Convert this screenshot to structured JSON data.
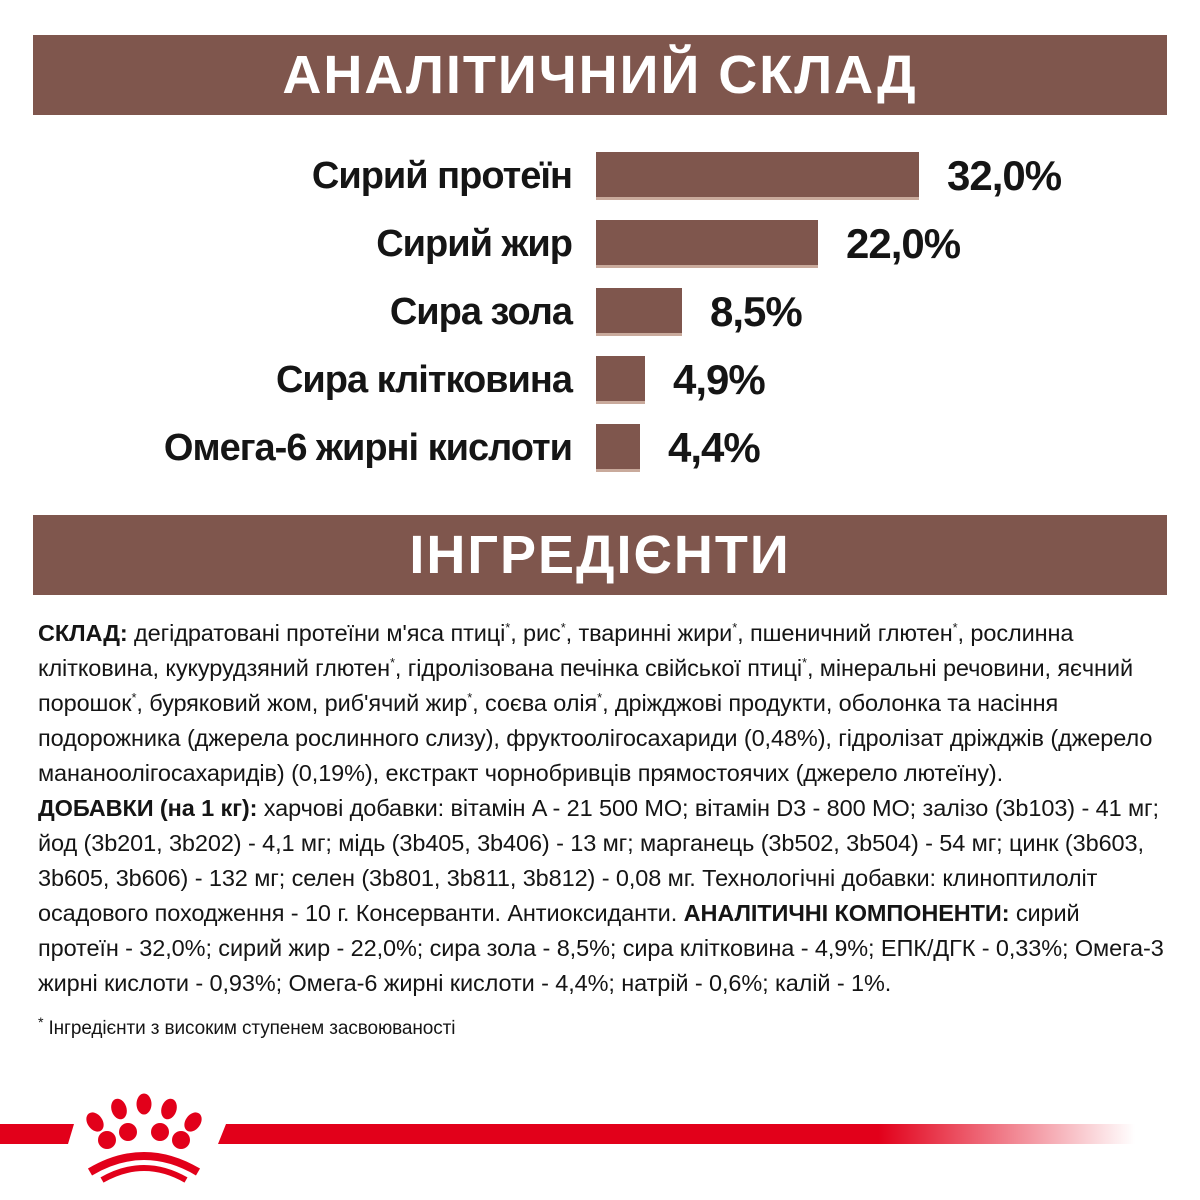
{
  "headers": {
    "analytical": "АНАЛІТИЧНИЙ СКЛАД",
    "ingredients": "ІНГРЕДІЄНТИ"
  },
  "colors": {
    "brand_brown": "#7F564D",
    "bar_edge": "#C9AA9C",
    "brand_red": "#E2001A",
    "header_text": "#FFFFFF",
    "body_text": "#151515"
  },
  "chart_data": {
    "type": "bar",
    "orientation": "horizontal",
    "title": "АНАЛІТИЧНИЙ СКЛАД",
    "categories": [
      "Сирий протеїн",
      "Сирий жир",
      "Сира зола",
      "Сира клітковина",
      "Омега-6 жирні кислоти"
    ],
    "values": [
      32.0,
      22.0,
      8.5,
      4.9,
      4.4
    ],
    "value_labels": [
      "32,0%",
      "22,0%",
      "8,5%",
      "4,9%",
      "4,4%"
    ],
    "unit": "%",
    "xlim": [
      0,
      35
    ],
    "grid": false,
    "legend": "none",
    "bar_color": "#7F564D"
  },
  "composition": {
    "segments": [
      {
        "text": "СКЛАД:",
        "style": "bold"
      },
      {
        "text": " дегідратовані протеїни м'яса птиці",
        "style": "normal"
      },
      {
        "text": "*",
        "style": "sup"
      },
      {
        "text": ", рис",
        "style": "normal"
      },
      {
        "text": "*",
        "style": "sup"
      },
      {
        "text": ", тваринні жири",
        "style": "normal"
      },
      {
        "text": "*",
        "style": "sup"
      },
      {
        "text": ", пшеничний глютен",
        "style": "normal"
      },
      {
        "text": "*",
        "style": "sup"
      },
      {
        "text": ", рослинна клітковина, кукурудзяний глютен",
        "style": "normal"
      },
      {
        "text": "*",
        "style": "sup"
      },
      {
        "text": ", гідролізована печінка свійської птиці",
        "style": "normal"
      },
      {
        "text": "*",
        "style": "sup"
      },
      {
        "text": ", мінеральні речовини, яєчний порошок",
        "style": "normal"
      },
      {
        "text": "*",
        "style": "sup"
      },
      {
        "text": ", буряковий жом, риб'ячий жир",
        "style": "normal"
      },
      {
        "text": "*",
        "style": "sup"
      },
      {
        "text": ", соєва олія",
        "style": "normal"
      },
      {
        "text": "*",
        "style": "sup"
      },
      {
        "text": ", дріжджові продукти, оболонка та насіння подорожника (джерела рослинного слизу), фруктоолігосахариди (0,48%), гідролізат дріжджів (джерело мананоолігосахаридів) (0,19%), екстракт чорнобривців прямостоячих (джерело лютеїну).",
        "style": "normal"
      }
    ]
  },
  "additives": {
    "segments": [
      {
        "text": "ДОБАВКИ (на 1 кг):",
        "style": "bold"
      },
      {
        "text": " харчові добавки: вітамін A - 21 500 МО; вітамін D3 - 800 МО; залізо (3b103) - 41 мг; йод (3b201, 3b202) - 4,1 мг; мідь (3b405, 3b406) - 13 мг; марганець (3b502, 3b504) - 54 мг; цинк (3b603, 3b605, 3b606) - 132 мг; селен (3b801, 3b811, 3b812) - 0,08 мг. Технологічні добавки: клиноптилоліт осадового походження - 10 г. Консерванти. Антиоксиданти. ",
        "style": "normal"
      },
      {
        "text": "АНАЛІТИЧНІ КОМПОНЕНТИ:",
        "style": "bold"
      },
      {
        "text": " сирий протеїн - 32,0%; сирий жир - 22,0%; сира зола - 8,5%; сира клітковина - 4,9%; ЕПК/ДГК - 0,33%; Омега-3 жирні кислоти - 0,93%; Омега-6 жирні кислоти - 4,4%; натрій - 0,6%; калій - 1%.",
        "style": "normal"
      }
    ]
  },
  "footnote": {
    "marker": "*",
    "text": "Інгредієнти з високим ступенем засвоюваності"
  },
  "brand": {
    "logo": "royal-canin-crown",
    "ribbon_color": "#E2001A"
  }
}
